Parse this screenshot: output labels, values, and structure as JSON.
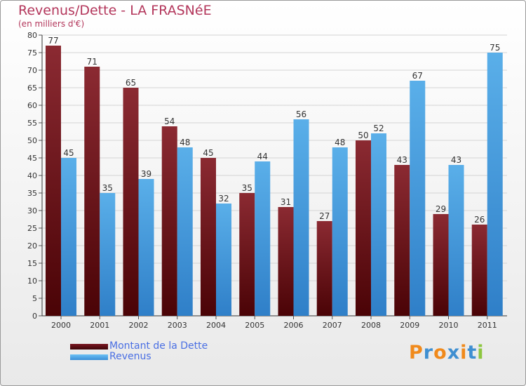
{
  "chart_data": {
    "type": "bar",
    "title": "Revenus/Dette - LA FRASNéE",
    "subtitle": "(en milliers d'€)",
    "categories": [
      "2000",
      "2001",
      "2002",
      "2003",
      "2004",
      "2005",
      "2006",
      "2007",
      "2008",
      "2009",
      "2010",
      "2011"
    ],
    "series": [
      {
        "name": "Montant de la Dette",
        "color": "#7a1620",
        "values": [
          77,
          71,
          65,
          54,
          45,
          35,
          31,
          27,
          50,
          43,
          29,
          26
        ]
      },
      {
        "name": "Revenus",
        "color": "#4aa3e6",
        "values": [
          45,
          35,
          39,
          48,
          32,
          44,
          56,
          48,
          52,
          67,
          43,
          75
        ]
      }
    ],
    "ylim": [
      0,
      80
    ],
    "yticks": [
      0,
      5,
      10,
      15,
      20,
      25,
      30,
      35,
      40,
      45,
      50,
      55,
      60,
      65,
      70,
      75,
      80
    ],
    "grid": true,
    "legend_position": "bottom-left"
  },
  "logo": {
    "text": "Proxiti",
    "letters": [
      "P",
      "r",
      "o",
      "x",
      "i",
      "t",
      "i"
    ],
    "colors": [
      "#f08a1c",
      "#3f8fd1",
      "#f08a1c",
      "#3f8fd1",
      "#f08a1c",
      "#3f8fd1",
      "#8dc63f"
    ]
  }
}
